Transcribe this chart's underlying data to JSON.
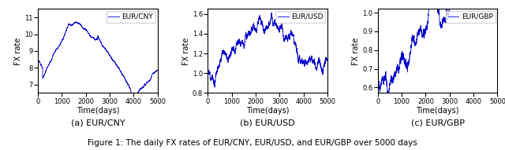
{
  "n_days": 5000,
  "line_color": "#0000cc",
  "line_width": 0.6,
  "xlabel": "Time(days)",
  "ylabel": "FX rate",
  "subplot_labels": [
    "(a) EUR/CNY",
    "(b) EUR/USD",
    "(c) EUR/GBP"
  ],
  "legend_labels": [
    "EUR/CNY",
    "EUR/USD",
    "EUR/GBP"
  ],
  "cny_ylim": [
    6.5,
    11.5
  ],
  "usd_ylim": [
    0.8,
    1.65
  ],
  "gbp_ylim": [
    0.57,
    1.02
  ],
  "tick_labelsize": 6,
  "axis_labelsize": 7,
  "legend_fontsize": 6.5,
  "sublabel_fontsize": 8,
  "caption_fontsize": 7.5
}
